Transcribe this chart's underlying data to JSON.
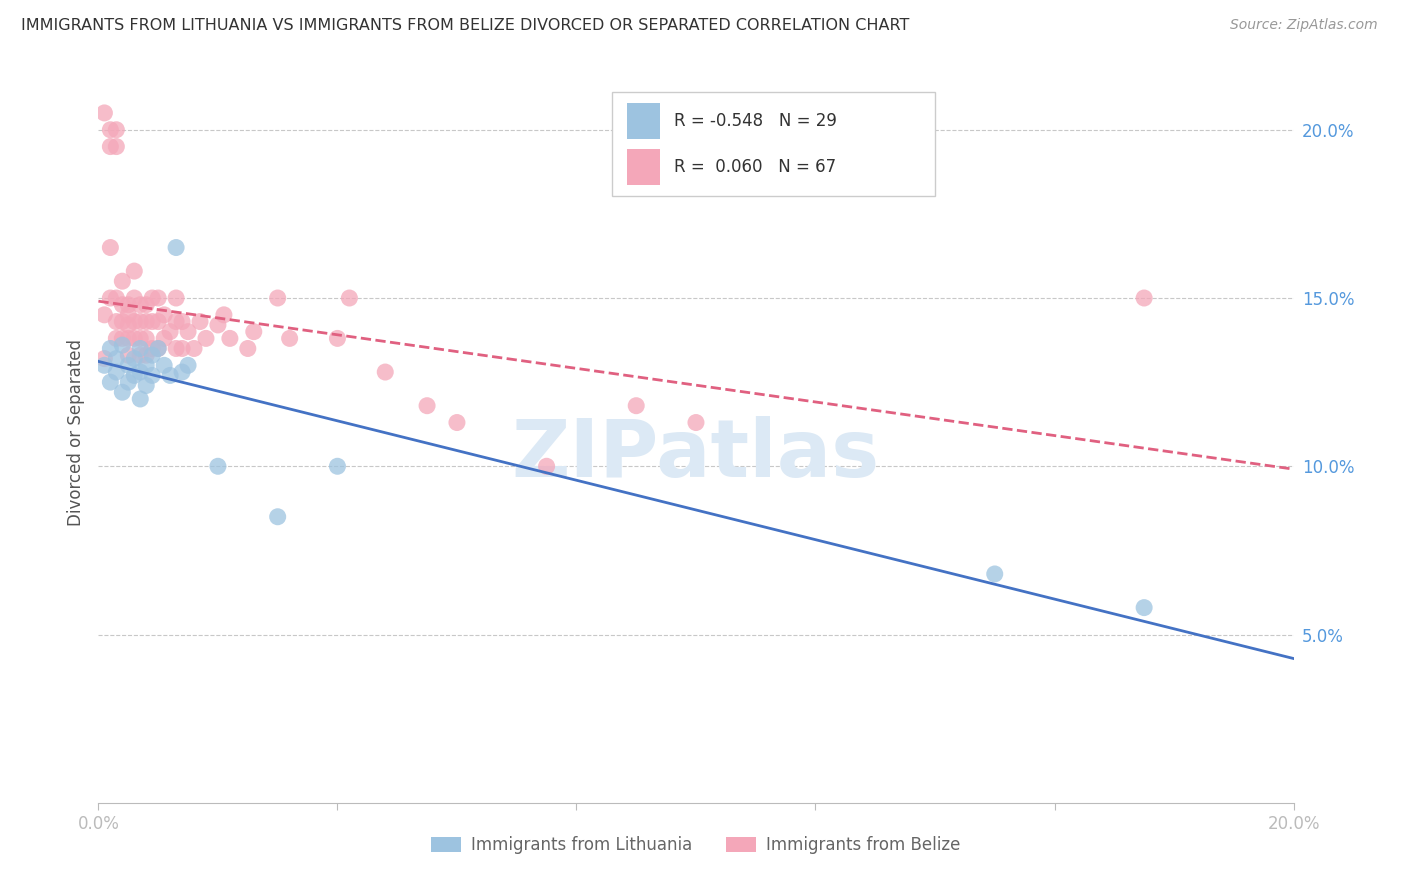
{
  "title": "IMMIGRANTS FROM LITHUANIA VS IMMIGRANTS FROM BELIZE DIVORCED OR SEPARATED CORRELATION CHART",
  "source": "Source: ZipAtlas.com",
  "ylabel": "Divorced or Separated",
  "xlim": [
    0.0,
    0.2
  ],
  "ylim": [
    0.0,
    0.22
  ],
  "yticks": [
    0.05,
    0.1,
    0.15,
    0.2
  ],
  "ytick_labels": [
    "5.0%",
    "10.0%",
    "15.0%",
    "20.0%"
  ],
  "xticks": [
    0.0,
    0.04,
    0.08,
    0.12,
    0.16,
    0.2
  ],
  "xtick_labels": [
    "0.0%",
    "",
    "",
    "",
    "",
    "20.0%"
  ],
  "legend_blue_label": "R = -0.548   N = 29",
  "legend_pink_label": "R =  0.060   N = 67",
  "legend_label_blue": "Immigrants from Lithuania",
  "legend_label_pink": "Immigrants from Belize",
  "blue_color": "#9dc3e0",
  "pink_color": "#f4a7b9",
  "blue_line_color": "#4472c4",
  "pink_line_color": "#e06080",
  "watermark": "ZIPatlas",
  "watermark_color": "#dce9f5",
  "background_color": "#ffffff",
  "grid_color": "#c8c8c8",
  "lithuania_x": [
    0.001,
    0.002,
    0.002,
    0.003,
    0.003,
    0.004,
    0.004,
    0.005,
    0.005,
    0.006,
    0.006,
    0.007,
    0.007,
    0.007,
    0.008,
    0.008,
    0.009,
    0.009,
    0.01,
    0.011,
    0.012,
    0.013,
    0.014,
    0.015,
    0.02,
    0.03,
    0.04,
    0.15,
    0.175
  ],
  "lithuania_y": [
    0.13,
    0.135,
    0.125,
    0.132,
    0.128,
    0.136,
    0.122,
    0.13,
    0.125,
    0.132,
    0.127,
    0.135,
    0.128,
    0.12,
    0.13,
    0.124,
    0.133,
    0.127,
    0.135,
    0.13,
    0.127,
    0.165,
    0.128,
    0.13,
    0.1,
    0.085,
    0.1,
    0.068,
    0.058
  ],
  "belize_x": [
    0.001,
    0.001,
    0.001,
    0.002,
    0.002,
    0.002,
    0.002,
    0.003,
    0.003,
    0.003,
    0.003,
    0.003,
    0.004,
    0.004,
    0.004,
    0.004,
    0.005,
    0.005,
    0.005,
    0.005,
    0.005,
    0.006,
    0.006,
    0.006,
    0.006,
    0.007,
    0.007,
    0.007,
    0.007,
    0.008,
    0.008,
    0.008,
    0.008,
    0.009,
    0.009,
    0.009,
    0.01,
    0.01,
    0.01,
    0.011,
    0.011,
    0.012,
    0.013,
    0.013,
    0.013,
    0.014,
    0.014,
    0.015,
    0.016,
    0.017,
    0.018,
    0.02,
    0.021,
    0.022,
    0.025,
    0.026,
    0.03,
    0.032,
    0.04,
    0.042,
    0.048,
    0.055,
    0.06,
    0.075,
    0.09,
    0.1,
    0.175
  ],
  "belize_y": [
    0.205,
    0.145,
    0.132,
    0.2,
    0.195,
    0.165,
    0.15,
    0.2,
    0.195,
    0.15,
    0.143,
    0.138,
    0.155,
    0.148,
    0.143,
    0.138,
    0.148,
    0.145,
    0.142,
    0.138,
    0.133,
    0.158,
    0.15,
    0.143,
    0.138,
    0.148,
    0.143,
    0.138,
    0.133,
    0.148,
    0.143,
    0.138,
    0.133,
    0.15,
    0.143,
    0.135,
    0.15,
    0.143,
    0.135,
    0.145,
    0.138,
    0.14,
    0.15,
    0.143,
    0.135,
    0.143,
    0.135,
    0.14,
    0.135,
    0.143,
    0.138,
    0.142,
    0.145,
    0.138,
    0.135,
    0.14,
    0.15,
    0.138,
    0.138,
    0.15,
    0.128,
    0.118,
    0.113,
    0.1,
    0.118,
    0.113,
    0.15
  ]
}
